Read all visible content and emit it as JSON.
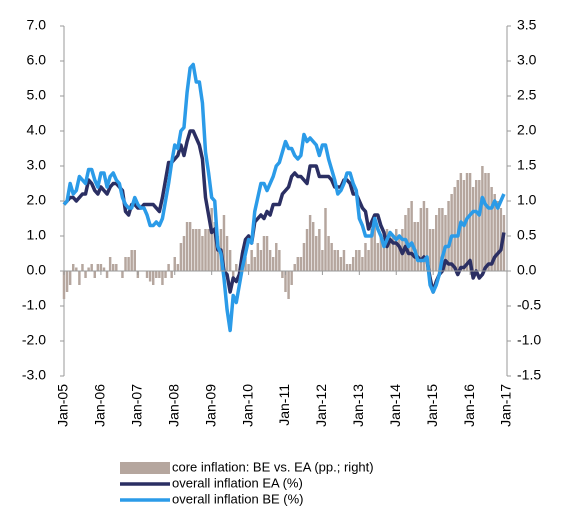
{
  "chart_data": {
    "type": "combo",
    "categories": [
      "Jan-05",
      null,
      null,
      null,
      null,
      null,
      null,
      null,
      null,
      null,
      null,
      null,
      "Jan-06",
      null,
      null,
      null,
      null,
      null,
      null,
      null,
      null,
      null,
      null,
      null,
      "Jan-07",
      null,
      null,
      null,
      null,
      null,
      null,
      null,
      null,
      null,
      null,
      null,
      "Jan-08",
      null,
      null,
      null,
      null,
      null,
      null,
      null,
      null,
      null,
      null,
      null,
      "Jan-09",
      null,
      null,
      null,
      null,
      null,
      null,
      null,
      null,
      null,
      null,
      null,
      "Jan-10",
      null,
      null,
      null,
      null,
      null,
      null,
      null,
      null,
      null,
      null,
      null,
      "Jan-11",
      null,
      null,
      null,
      null,
      null,
      null,
      null,
      null,
      null,
      null,
      null,
      "Jan-12",
      null,
      null,
      null,
      null,
      null,
      null,
      null,
      null,
      null,
      null,
      null,
      "Jan-13",
      null,
      null,
      null,
      null,
      null,
      null,
      null,
      null,
      null,
      null,
      null,
      "Jan-14",
      null,
      null,
      null,
      null,
      null,
      null,
      null,
      null,
      null,
      null,
      null,
      "Jan-15",
      null,
      null,
      null,
      null,
      null,
      null,
      null,
      null,
      null,
      null,
      null,
      "Jan-16",
      null,
      null,
      null,
      null,
      null,
      null,
      null,
      null,
      null,
      null,
      null,
      "Jan-17"
    ],
    "series": [
      {
        "name": "core inflation: BE vs. EA (pp.; right)",
        "type": "bar",
        "axis": "y2",
        "color": "#b5a69e",
        "values": [
          -0.4,
          -0.3,
          -0.2,
          0.1,
          0.05,
          -0.2,
          0.1,
          -0.1,
          0.05,
          0.1,
          -0.1,
          0.1,
          0.1,
          0.05,
          -0.1,
          0.2,
          0.1,
          0.1,
          0.0,
          -0.1,
          0.2,
          0.2,
          0.3,
          0.3,
          -0.1,
          0.0,
          0.0,
          -0.1,
          -0.15,
          -0.2,
          -0.1,
          -0.1,
          -0.2,
          -0.1,
          0.1,
          -0.1,
          0.2,
          0.1,
          0.4,
          0.5,
          0.7,
          0.7,
          0.6,
          0.6,
          0.6,
          0.5,
          0.6,
          0.6,
          0.9,
          0.7,
          0.5,
          0.6,
          0.8,
          0.5,
          0.3,
          -0.1,
          0.1,
          0.0,
          0.3,
          0.2,
          0.1,
          0.3,
          0.2,
          0.4,
          0.3,
          0.5,
          0.5,
          0.3,
          0.2,
          0.4,
          0.3,
          -0.1,
          -0.3,
          -0.4,
          -0.2,
          0.1,
          0.2,
          0.2,
          0.4,
          0.6,
          0.8,
          0.7,
          0.5,
          0.6,
          0.3,
          0.9,
          0.5,
          0.4,
          0.3,
          0.3,
          0.2,
          0.3,
          0.1,
          0.1,
          0.2,
          0.3,
          0.3,
          0.2,
          0.4,
          0.3,
          0.6,
          0.8,
          0.4,
          0.5,
          0.4,
          0.6,
          0.5,
          0.5,
          0.6,
          0.5,
          0.6,
          0.8,
          0.9,
          1.0,
          0.7,
          0.7,
          0.9,
          1.0,
          0.9,
          0.6,
          0.6,
          0.8,
          0.9,
          0.9,
          0.8,
          1.0,
          1.1,
          1.2,
          1.3,
          1.4,
          1.3,
          1.4,
          1.4,
          1.2,
          1.3,
          1.3,
          1.5,
          1.4,
          1.4,
          1.2,
          1.1,
          1.0,
          0.9,
          0.8,
          null
        ]
      },
      {
        "name": "overall inflation EA (%)",
        "type": "line",
        "color": "#2b2f63",
        "values": [
          1.9,
          2.0,
          2.1,
          2.1,
          2.0,
          2.1,
          2.2,
          2.2,
          2.6,
          2.5,
          2.3,
          2.2,
          2.4,
          2.3,
          2.2,
          2.4,
          2.5,
          2.5,
          2.4,
          2.3,
          1.7,
          1.6,
          1.9,
          1.9,
          1.8,
          1.8,
          1.9,
          1.9,
          1.9,
          1.9,
          1.8,
          1.7,
          2.1,
          2.6,
          3.1,
          3.1,
          3.2,
          3.3,
          3.6,
          3.3,
          3.7,
          4.0,
          4.0,
          3.8,
          3.6,
          3.2,
          2.1,
          1.6,
          1.1,
          1.2,
          0.6,
          0.6,
          0.0,
          -0.1,
          -0.6,
          -0.2,
          -0.3,
          -0.1,
          0.5,
          0.9,
          1.0,
          0.8,
          1.4,
          1.5,
          1.6,
          1.5,
          1.7,
          1.6,
          1.9,
          1.9,
          1.9,
          2.2,
          2.3,
          2.4,
          2.7,
          2.8,
          2.7,
          2.7,
          2.6,
          2.5,
          3.0,
          3.0,
          3.0,
          2.7,
          2.7,
          2.7,
          2.7,
          2.6,
          2.4,
          2.4,
          2.4,
          2.6,
          2.6,
          2.5,
          2.2,
          2.2,
          2.0,
          1.8,
          1.7,
          1.2,
          1.4,
          1.6,
          1.6,
          1.3,
          1.1,
          0.7,
          0.9,
          0.8,
          0.8,
          0.7,
          0.5,
          0.7,
          0.5,
          0.5,
          0.4,
          0.4,
          0.3,
          0.4,
          0.3,
          -0.2,
          -0.6,
          -0.3,
          -0.1,
          0.0,
          0.3,
          0.2,
          0.2,
          0.1,
          -0.1,
          0.1,
          0.1,
          0.2,
          0.3,
          -0.2,
          0.0,
          -0.2,
          -0.1,
          0.1,
          0.2,
          0.2,
          0.4,
          0.5,
          0.6,
          1.1,
          null
        ]
      },
      {
        "name": "overall inflation BE (%)",
        "type": "line",
        "color": "#2b9be8",
        "values": [
          1.9,
          2.0,
          2.5,
          2.2,
          2.3,
          2.7,
          2.6,
          2.5,
          2.9,
          2.9,
          2.6,
          2.4,
          2.8,
          2.8,
          2.4,
          2.7,
          2.8,
          2.6,
          2.5,
          2.1,
          1.9,
          1.8,
          1.8,
          2.1,
          1.9,
          1.8,
          1.8,
          1.6,
          1.3,
          1.3,
          1.4,
          1.3,
          1.5,
          2.0,
          2.5,
          3.1,
          3.6,
          3.5,
          4.0,
          4.1,
          5.1,
          5.8,
          5.9,
          5.4,
          5.4,
          4.8,
          3.4,
          2.8,
          2.1,
          2.0,
          0.7,
          0.5,
          -0.2,
          -1.1,
          -1.7,
          -0.7,
          -0.9,
          -0.4,
          0.1,
          0.5,
          0.9,
          0.8,
          1.7,
          2.1,
          2.5,
          2.5,
          2.3,
          2.5,
          2.7,
          3.0,
          3.1,
          3.4,
          3.7,
          3.5,
          3.5,
          3.3,
          3.2,
          3.3,
          3.9,
          3.7,
          3.8,
          3.7,
          3.6,
          3.3,
          3.6,
          3.6,
          3.2,
          2.9,
          2.6,
          2.2,
          2.3,
          2.5,
          2.8,
          2.8,
          2.5,
          2.3,
          1.5,
          1.3,
          1.0,
          1.0,
          1.0,
          1.5,
          1.2,
          1.0,
          0.7,
          0.9,
          1.1,
          1.0,
          0.9,
          1.0,
          0.9,
          0.9,
          0.7,
          0.8,
          0.6,
          0.3,
          0.3,
          0.3,
          0.4,
          -0.4,
          -0.6,
          -0.4,
          -0.1,
          0.4,
          0.7,
          0.7,
          1.0,
          1.0,
          1.0,
          1.4,
          1.3,
          1.5,
          1.6,
          1.7,
          1.7,
          1.6,
          2.1,
          1.9,
          1.8,
          1.8,
          2.0,
          1.8,
          2.0,
          2.2,
          null
        ]
      }
    ],
    "ylim": [
      -3,
      7
    ],
    "yticks": [
      {
        "value": -3,
        "label": "-3.0"
      },
      {
        "value": -2,
        "label": "-2.0"
      },
      {
        "value": -1,
        "label": "-1.0"
      },
      {
        "value": 0,
        "label": "0.0"
      },
      {
        "value": 1,
        "label": "1.0"
      },
      {
        "value": 2,
        "label": "2.0"
      },
      {
        "value": 3,
        "label": "3.0"
      },
      {
        "value": 4,
        "label": "4.0"
      },
      {
        "value": 5,
        "label": "5.0"
      },
      {
        "value": 6,
        "label": "6.0"
      },
      {
        "value": 7,
        "label": "7.0"
      }
    ],
    "y2lim": [
      -1.5,
      3.5
    ],
    "y2ticks": [
      -1.5,
      {
        "value": -1,
        "label": "-1.0"
      },
      -0.5,
      {
        "value": 0,
        "label": "0.0"
      },
      0.5,
      {
        "value": 1,
        "label": "1.0"
      },
      1.5,
      {
        "value": 2,
        "label": "2.0"
      },
      2.5,
      {
        "value": 3,
        "label": "3.0"
      },
      3.5
    ]
  }
}
